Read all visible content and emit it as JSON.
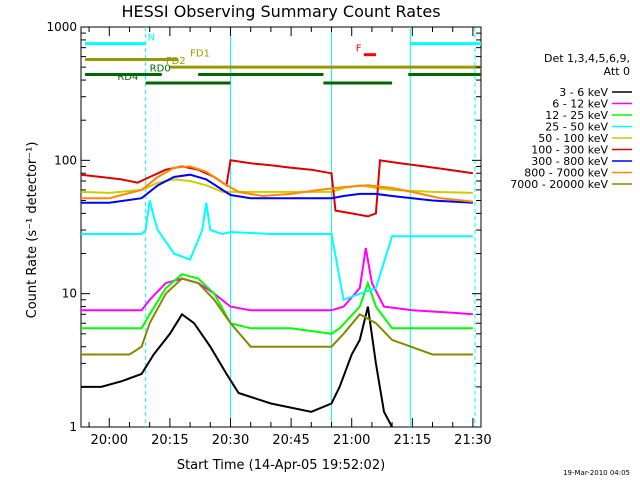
{
  "chart_data": {
    "type": "line",
    "title": "HESSI Observing Summary Count Rates",
    "xlabel": "Start Time (14-Apr-05 19:52:02)",
    "ylabel": "Count Rate (s⁻¹ detector⁻¹)",
    "x_tick_labels": [
      "20:00",
      "20:15",
      "20:30",
      "20:45",
      "21:00",
      "21:15",
      "21:30"
    ],
    "x_tick_minutes": [
      0,
      15,
      30,
      45,
      60,
      75,
      90
    ],
    "xlim_minutes": [
      -7.0,
      92.0
    ],
    "y_scale": "log",
    "ylim": [
      1,
      1000
    ],
    "y_tick_labels": [
      "1",
      "10",
      "100",
      "1000"
    ],
    "y_tick_values": [
      1,
      10,
      100,
      1000
    ],
    "timestamp": "19-Mar-2010 04:05",
    "legend_header": [
      "Det 1,3,4,5,6,9,",
      "Att 0"
    ],
    "series": [
      {
        "name": "3 - 6 keV",
        "color": "#000000",
        "points": [
          [
            -7,
            2
          ],
          [
            -2,
            2
          ],
          [
            3,
            2.2
          ],
          [
            8,
            2.5
          ],
          [
            11,
            3.5
          ],
          [
            15,
            5
          ],
          [
            18,
            7
          ],
          [
            21,
            6
          ],
          [
            25,
            4
          ],
          [
            29,
            2.5
          ],
          [
            32,
            1.8
          ],
          [
            40,
            1.5
          ],
          [
            50,
            1.3
          ],
          [
            55,
            1.5
          ],
          [
            57,
            2
          ],
          [
            60,
            3.5
          ],
          [
            62,
            4.5
          ],
          [
            64,
            8
          ],
          [
            66,
            3
          ],
          [
            68,
            1.3
          ],
          [
            70,
            1
          ]
        ]
      },
      {
        "name": "6 - 12 keV",
        "color": "#ff00ff",
        "points": [
          [
            -7,
            7.5
          ],
          [
            0,
            7.5
          ],
          [
            5,
            7.5
          ],
          [
            8,
            7.5
          ],
          [
            10,
            9
          ],
          [
            14,
            12
          ],
          [
            18,
            13
          ],
          [
            22,
            12
          ],
          [
            26,
            10
          ],
          [
            30,
            8
          ],
          [
            35,
            7.5
          ],
          [
            45,
            7.5
          ],
          [
            55,
            7.5
          ],
          [
            58,
            8
          ],
          [
            62,
            11
          ],
          [
            63.5,
            22
          ],
          [
            65,
            12
          ],
          [
            68,
            8
          ],
          [
            75,
            7.5
          ],
          [
            85,
            7.2
          ],
          [
            90,
            7
          ]
        ]
      },
      {
        "name": "12 - 25 keV",
        "color": "#00ff00",
        "points": [
          [
            -7,
            5.5
          ],
          [
            0,
            5.5
          ],
          [
            8,
            5.5
          ],
          [
            10,
            7
          ],
          [
            14,
            11
          ],
          [
            18,
            14
          ],
          [
            22,
            13
          ],
          [
            26,
            10
          ],
          [
            30,
            6
          ],
          [
            35,
            5.5
          ],
          [
            45,
            5.5
          ],
          [
            55,
            5
          ],
          [
            57,
            5.5
          ],
          [
            62,
            8
          ],
          [
            64,
            12
          ],
          [
            66,
            8
          ],
          [
            70,
            5.5
          ],
          [
            80,
            5.5
          ],
          [
            90,
            5.5
          ]
        ]
      },
      {
        "name": "25 - 50 keV",
        "color": "#00ffff",
        "points": [
          [
            -7,
            28
          ],
          [
            0,
            28
          ],
          [
            8,
            28
          ],
          [
            9,
            30
          ],
          [
            10,
            50
          ],
          [
            11,
            38
          ],
          [
            12,
            30
          ],
          [
            16,
            20
          ],
          [
            20,
            18
          ],
          [
            23,
            30
          ],
          [
            24,
            48
          ],
          [
            25,
            30
          ],
          [
            28,
            28
          ],
          [
            30,
            29
          ],
          [
            40,
            28
          ],
          [
            55,
            28
          ],
          [
            58,
            9
          ],
          [
            62,
            10
          ],
          [
            66,
            11
          ],
          [
            70,
            27
          ],
          [
            80,
            27
          ],
          [
            90,
            27
          ]
        ]
      },
      {
        "name": "50 - 100 keV",
        "color": "#cccc00",
        "points": [
          [
            -7,
            58
          ],
          [
            0,
            57
          ],
          [
            8,
            60
          ],
          [
            12,
            68
          ],
          [
            16,
            72
          ],
          [
            20,
            70
          ],
          [
            24,
            65
          ],
          [
            28,
            58
          ],
          [
            30,
            58
          ],
          [
            35,
            58
          ],
          [
            45,
            58
          ],
          [
            55,
            58
          ],
          [
            58,
            62
          ],
          [
            62,
            65
          ],
          [
            66,
            62
          ],
          [
            70,
            60
          ],
          [
            80,
            58
          ],
          [
            90,
            57
          ]
        ]
      },
      {
        "name": "100 - 300 keV",
        "color": "#dd0000",
        "points": [
          [
            -7,
            78
          ],
          [
            -2,
            75
          ],
          [
            3,
            72
          ],
          [
            7,
            68
          ],
          [
            10,
            75
          ],
          [
            14,
            85
          ],
          [
            18,
            90
          ],
          [
            22,
            85
          ],
          [
            26,
            75
          ],
          [
            29,
            65
          ],
          [
            30,
            100
          ],
          [
            35,
            95
          ],
          [
            40,
            92
          ],
          [
            45,
            88
          ],
          [
            50,
            85
          ],
          [
            55,
            80
          ],
          [
            56,
            42
          ],
          [
            60,
            40
          ],
          [
            64,
            38
          ],
          [
            66,
            40
          ],
          [
            67,
            100
          ],
          [
            72,
            95
          ],
          [
            78,
            90
          ],
          [
            84,
            85
          ],
          [
            90,
            80
          ]
        ]
      },
      {
        "name": "300 - 800 keV",
        "color": "#0000ff",
        "points": [
          [
            -7,
            48
          ],
          [
            0,
            48
          ],
          [
            8,
            52
          ],
          [
            12,
            65
          ],
          [
            16,
            75
          ],
          [
            20,
            78
          ],
          [
            24,
            72
          ],
          [
            28,
            60
          ],
          [
            30,
            55
          ],
          [
            35,
            52
          ],
          [
            45,
            52
          ],
          [
            55,
            52
          ],
          [
            58,
            54
          ],
          [
            62,
            56
          ],
          [
            66,
            56
          ],
          [
            70,
            54
          ],
          [
            80,
            50
          ],
          [
            90,
            48
          ]
        ]
      },
      {
        "name": "800 - 7000 keV",
        "color": "#ff8800",
        "points": [
          [
            -7,
            52
          ],
          [
            0,
            52
          ],
          [
            8,
            60
          ],
          [
            12,
            75
          ],
          [
            16,
            88
          ],
          [
            20,
            90
          ],
          [
            24,
            82
          ],
          [
            28,
            68
          ],
          [
            32,
            58
          ],
          [
            38,
            54
          ],
          [
            45,
            56
          ],
          [
            52,
            60
          ],
          [
            58,
            63
          ],
          [
            64,
            65
          ],
          [
            70,
            62
          ],
          [
            76,
            57
          ],
          [
            82,
            52
          ],
          [
            90,
            49
          ]
        ]
      },
      {
        "name": "7000 - 20000 keV",
        "color": "#888800",
        "points": [
          [
            -7,
            3.5
          ],
          [
            0,
            3.5
          ],
          [
            5,
            3.5
          ],
          [
            8,
            4
          ],
          [
            10,
            6
          ],
          [
            14,
            10
          ],
          [
            18,
            13
          ],
          [
            22,
            12
          ],
          [
            26,
            9
          ],
          [
            30,
            6
          ],
          [
            35,
            4
          ],
          [
            45,
            4
          ],
          [
            55,
            4
          ],
          [
            58,
            5
          ],
          [
            62,
            7
          ],
          [
            66,
            6
          ],
          [
            70,
            4.5
          ],
          [
            80,
            3.5
          ],
          [
            90,
            3.5
          ]
        ]
      }
    ],
    "state_bars": [
      {
        "label": "N",
        "color": "#00ffff",
        "y": 750,
        "segments": [
          [
            -6,
            9
          ],
          [
            74.5,
            92
          ]
        ],
        "label_at": 9.5
      },
      {
        "label": "F",
        "color": "#ff0000",
        "y": 620,
        "segments": [
          [
            63,
            66
          ]
        ],
        "label_at": 61
      },
      {
        "label": "FD1",
        "color": "#999900",
        "y": 570,
        "segments": [
          [
            -6,
            17
          ]
        ],
        "label_at": 20
      },
      {
        "label": "FD2",
        "color": "#999900",
        "y": 500,
        "segments": [
          [
            15,
            92
          ]
        ],
        "label_at": 14
      },
      {
        "label": "RD0",
        "color": "#006600",
        "y": 440,
        "segments": [
          [
            -6,
            13
          ],
          [
            22,
            53
          ],
          [
            74,
            92
          ]
        ],
        "label_at": 10
      },
      {
        "label": "RD4",
        "color": "#006600",
        "y": 380,
        "segments": [
          [
            9,
            30
          ],
          [
            53,
            70
          ]
        ],
        "label_at": 2
      }
    ],
    "vertical_lines": [
      {
        "x": 9,
        "style": "dashed",
        "color": "#00ffff"
      },
      {
        "x": 30,
        "style": "solid",
        "color": "#00ffff"
      },
      {
        "x": 55,
        "style": "solid",
        "color": "#00ffff"
      },
      {
        "x": 74.5,
        "style": "solid",
        "color": "#00ffff"
      },
      {
        "x": 90.5,
        "style": "dashed",
        "color": "#00ffff"
      }
    ]
  }
}
